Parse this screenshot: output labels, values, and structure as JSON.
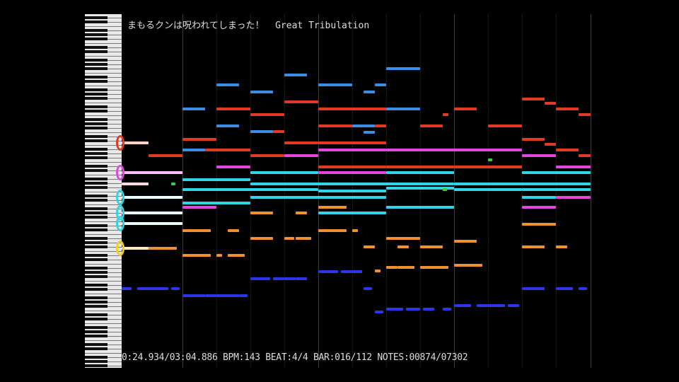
{
  "title": {
    "song": "まもるクンは呪われてしまった！",
    "track": "Great Tribulation"
  },
  "status": {
    "time": "0:24.934/03:04.886",
    "bpm": "BPM:143",
    "beat": "BEAT:4/4",
    "bar": "BAR:016/112",
    "notes": "NOTES:00874/07302"
  },
  "colors": {
    "background": "#000000",
    "red": "#e03a22",
    "blue": "#3a8ee8",
    "magenta": "#e048e0",
    "cyan": "#30d4e4",
    "orange": "#f09030",
    "dark_blue": "#2a36e8",
    "green": "#30d040"
  }
}
